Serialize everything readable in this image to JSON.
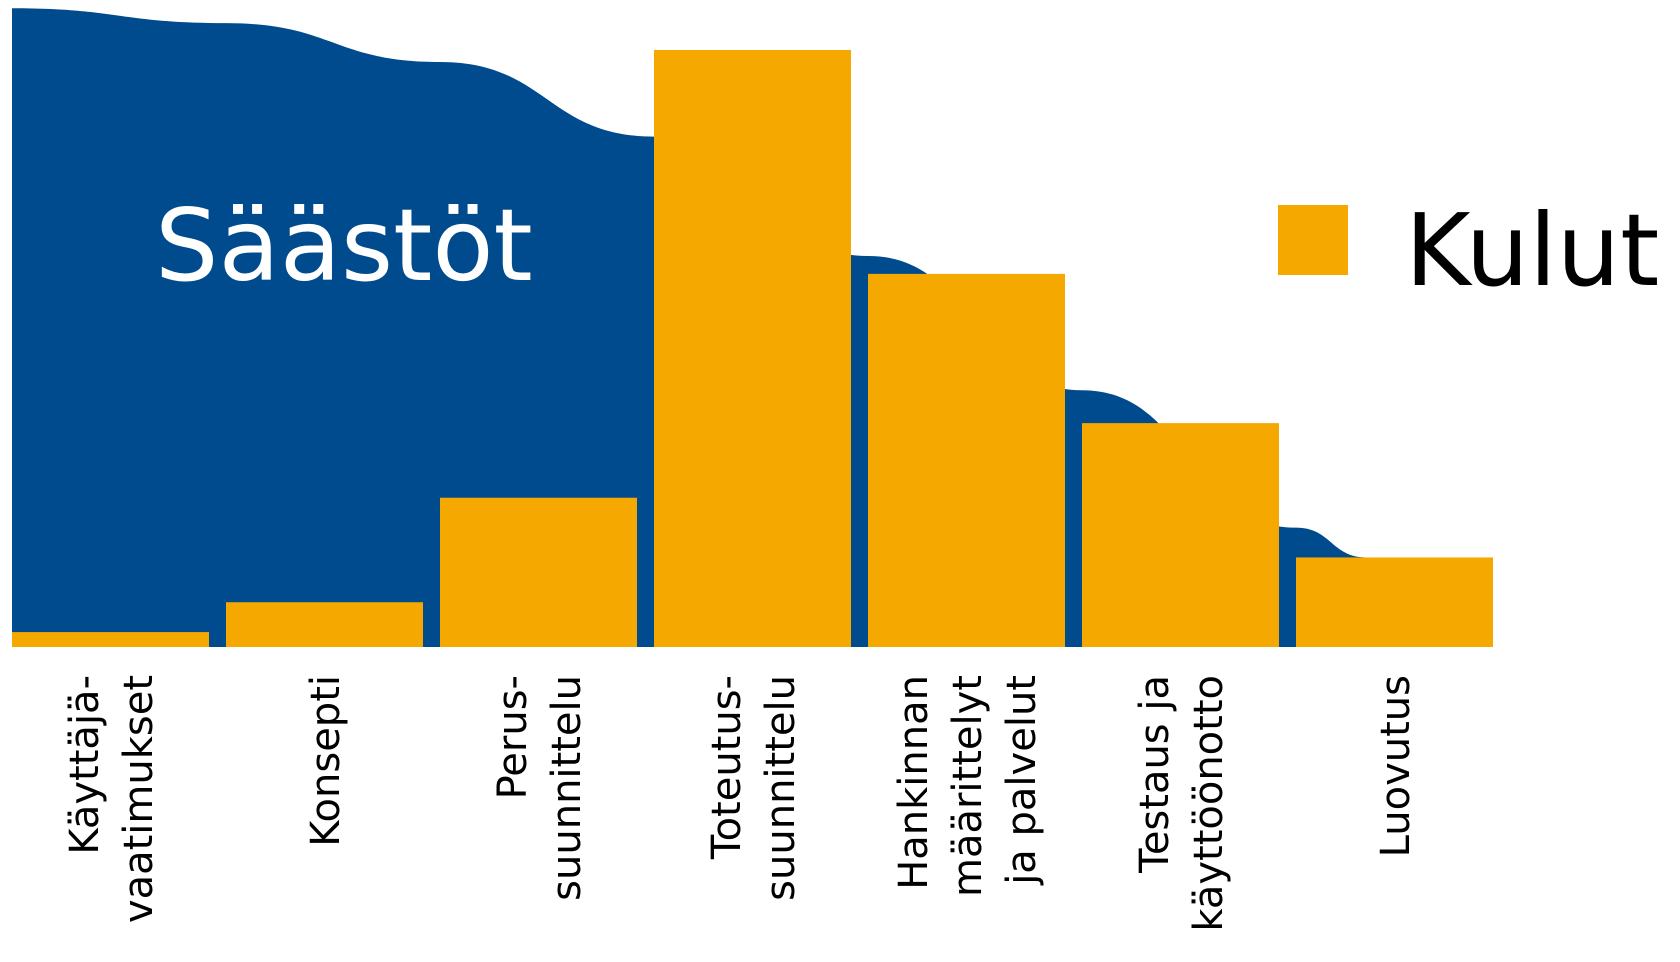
{
  "chart_data": {
    "type": "bar",
    "categories": [
      [
        "Käyttäjä-",
        "vaatimukset"
      ],
      [
        "Konsepti"
      ],
      [
        "Perus-",
        "suunnittelu"
      ],
      [
        "Toteutus-",
        "suunnittelu"
      ],
      [
        "Hankinnan",
        "määrittelyt",
        "ja palvelut"
      ],
      [
        "Testaus ja",
        "käyttöönotto"
      ],
      [
        "Luovutus"
      ]
    ],
    "series": [
      {
        "name": "Kulut",
        "values": [
          2.5,
          7.5,
          25,
          100,
          62.5,
          37.5,
          15
        ]
      }
    ],
    "savings_curve": {
      "label": "Säästöt",
      "x": [
        0,
        1,
        2,
        3,
        4,
        5,
        6,
        6.33
      ],
      "y": [
        107,
        104.5,
        98,
        85.5,
        65.5,
        43,
        20,
        15
      ]
    },
    "ylim": [
      0,
      108
    ],
    "legend_placement": "right",
    "colors": {
      "bars": "#F5A800",
      "savings": "#004B8D",
      "background": "#FFFFFF",
      "text": "#000000"
    }
  }
}
